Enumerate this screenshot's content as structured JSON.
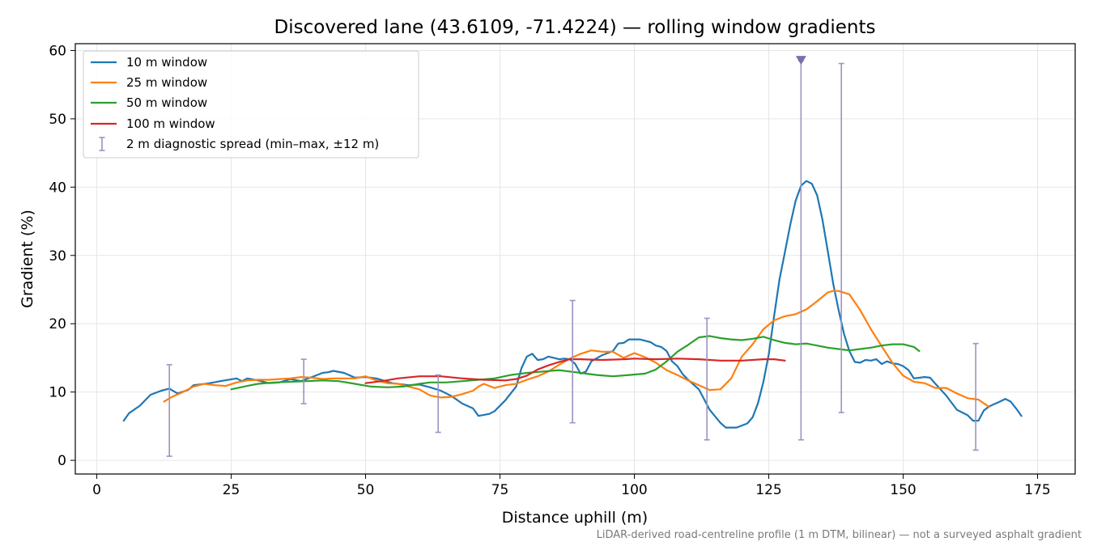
{
  "chart_data": {
    "type": "line",
    "title": "Discovered lane (43.6109, -71.4224) — rolling window gradients",
    "xlabel": "Distance uphill (m)",
    "ylabel": "Gradient (%)",
    "xlim": [
      -4,
      182
    ],
    "ylim": [
      -2,
      61
    ],
    "xticks": [
      0,
      25,
      50,
      75,
      100,
      125,
      150,
      175
    ],
    "yticks": [
      0,
      10,
      20,
      30,
      40,
      50,
      60
    ],
    "grid": true,
    "legend_position": "top-left",
    "footnote": "LiDAR-derived road-centreline profile (1 m DTM, bilinear) — not a surveyed asphalt gradient",
    "series": [
      {
        "name": "10 m window",
        "color": "#1f77b4",
        "points": [
          [
            5,
            5.8
          ],
          [
            6,
            6.9
          ],
          [
            8,
            8.0
          ],
          [
            10,
            9.6
          ],
          [
            12,
            10.2
          ],
          [
            13.5,
            10.5
          ],
          [
            15,
            9.8
          ],
          [
            17,
            10.3
          ],
          [
            18,
            11.0
          ],
          [
            21,
            11.3
          ],
          [
            23,
            11.6
          ],
          [
            26,
            12.0
          ],
          [
            27,
            11.6
          ],
          [
            28,
            12.0
          ],
          [
            30,
            11.7
          ],
          [
            32,
            11.3
          ],
          [
            34,
            11.4
          ],
          [
            36,
            11.9
          ],
          [
            38,
            11.6
          ],
          [
            40,
            12.2
          ],
          [
            42,
            12.8
          ],
          [
            43,
            12.9
          ],
          [
            44,
            13.1
          ],
          [
            46,
            12.8
          ],
          [
            48,
            12.1
          ],
          [
            50,
            12.2
          ],
          [
            52,
            12.0
          ],
          [
            55,
            11.3
          ],
          [
            58,
            11.0
          ],
          [
            60,
            11.1
          ],
          [
            62,
            10.7
          ],
          [
            64,
            10.2
          ],
          [
            66,
            9.4
          ],
          [
            68,
            8.3
          ],
          [
            70,
            7.6
          ],
          [
            71,
            6.5
          ],
          [
            73,
            6.8
          ],
          [
            74,
            7.2
          ],
          [
            76,
            8.8
          ],
          [
            78,
            10.8
          ],
          [
            79,
            13.5
          ],
          [
            80,
            15.2
          ],
          [
            81,
            15.6
          ],
          [
            82,
            14.7
          ],
          [
            83,
            14.8
          ],
          [
            84,
            15.2
          ],
          [
            86,
            14.8
          ],
          [
            87,
            14.9
          ],
          [
            88,
            14.8
          ],
          [
            89,
            14.1
          ],
          [
            90,
            12.7
          ],
          [
            91,
            13.0
          ],
          [
            92,
            14.5
          ],
          [
            94,
            15.4
          ],
          [
            96,
            16.0
          ],
          [
            97,
            17.1
          ],
          [
            98,
            17.2
          ],
          [
            99,
            17.7
          ],
          [
            101,
            17.7
          ],
          [
            103,
            17.3
          ],
          [
            104,
            16.8
          ],
          [
            105,
            16.6
          ],
          [
            106,
            16.0
          ],
          [
            107,
            14.5
          ],
          [
            108,
            13.8
          ],
          [
            109,
            12.6
          ],
          [
            110,
            11.8
          ],
          [
            112,
            10.4
          ],
          [
            114,
            7.4
          ],
          [
            116,
            5.5
          ],
          [
            117,
            4.8
          ],
          [
            119,
            4.8
          ],
          [
            121,
            5.4
          ],
          [
            122,
            6.3
          ],
          [
            123,
            8.4
          ],
          [
            124,
            11.5
          ],
          [
            125,
            15.5
          ],
          [
            126,
            21.2
          ],
          [
            127,
            26.5
          ],
          [
            128,
            30.5
          ],
          [
            129,
            34.5
          ],
          [
            130,
            38.0
          ],
          [
            131,
            40.2
          ],
          [
            132,
            40.9
          ],
          [
            133,
            40.5
          ],
          [
            134,
            38.8
          ],
          [
            135,
            35.2
          ],
          [
            136,
            30.5
          ],
          [
            137,
            25.8
          ],
          [
            138,
            22.0
          ],
          [
            139,
            18.5
          ],
          [
            140,
            16.0
          ],
          [
            141,
            14.4
          ],
          [
            142,
            14.3
          ],
          [
            143,
            14.7
          ],
          [
            144,
            14.6
          ],
          [
            145,
            14.8
          ],
          [
            146,
            14.1
          ],
          [
            147,
            14.5
          ],
          [
            148,
            14.2
          ],
          [
            149,
            14.1
          ],
          [
            150,
            13.8
          ],
          [
            151,
            13.2
          ],
          [
            152,
            12.0
          ],
          [
            154,
            12.2
          ],
          [
            155,
            12.1
          ],
          [
            156,
            11.2
          ],
          [
            158,
            9.5
          ],
          [
            160,
            7.4
          ],
          [
            162,
            6.6
          ],
          [
            163,
            5.8
          ],
          [
            164,
            5.8
          ],
          [
            165,
            7.3
          ],
          [
            166,
            7.9
          ],
          [
            168,
            8.6
          ],
          [
            169,
            9.0
          ],
          [
            170,
            8.6
          ],
          [
            171,
            7.6
          ],
          [
            172,
            6.5
          ]
        ]
      },
      {
        "name": "25 m window",
        "color": "#ff7f0e",
        "points": [
          [
            12.5,
            8.6
          ],
          [
            14,
            9.3
          ],
          [
            16,
            10.0
          ],
          [
            18,
            10.8
          ],
          [
            20,
            11.2
          ],
          [
            22,
            11.0
          ],
          [
            24,
            10.9
          ],
          [
            26,
            11.4
          ],
          [
            28,
            11.7
          ],
          [
            30,
            11.8
          ],
          [
            32,
            11.8
          ],
          [
            34,
            11.9
          ],
          [
            36,
            12.0
          ],
          [
            38,
            12.2
          ],
          [
            40,
            12.1
          ],
          [
            42,
            11.9
          ],
          [
            44,
            12.0
          ],
          [
            46,
            12.0
          ],
          [
            48,
            12.0
          ],
          [
            50,
            12.3
          ],
          [
            52,
            11.7
          ],
          [
            54,
            11.3
          ],
          [
            56,
            11.2
          ],
          [
            58,
            10.8
          ],
          [
            60,
            10.4
          ],
          [
            62,
            9.5
          ],
          [
            64,
            9.2
          ],
          [
            66,
            9.3
          ],
          [
            68,
            9.7
          ],
          [
            70,
            10.2
          ],
          [
            71,
            10.8
          ],
          [
            72,
            11.2
          ],
          [
            74,
            10.6
          ],
          [
            76,
            11.0
          ],
          [
            78,
            11.2
          ],
          [
            80,
            11.8
          ],
          [
            82,
            12.3
          ],
          [
            84,
            13.0
          ],
          [
            86,
            14.0
          ],
          [
            88,
            14.9
          ],
          [
            90,
            15.6
          ],
          [
            92,
            16.1
          ],
          [
            94,
            15.9
          ],
          [
            96,
            15.9
          ],
          [
            98,
            15.0
          ],
          [
            100,
            15.7
          ],
          [
            102,
            15.1
          ],
          [
            104,
            14.3
          ],
          [
            106,
            13.2
          ],
          [
            108,
            12.5
          ],
          [
            110,
            11.7
          ],
          [
            112,
            11.0
          ],
          [
            114,
            10.3
          ],
          [
            116,
            10.4
          ],
          [
            118,
            12.0
          ],
          [
            120,
            15.2
          ],
          [
            122,
            17.0
          ],
          [
            124,
            19.2
          ],
          [
            126,
            20.5
          ],
          [
            128,
            21.1
          ],
          [
            130,
            21.4
          ],
          [
            132,
            22.1
          ],
          [
            134,
            23.3
          ],
          [
            136,
            24.6
          ],
          [
            137,
            24.8
          ],
          [
            138,
            24.8
          ],
          [
            140,
            24.3
          ],
          [
            142,
            22.0
          ],
          [
            144,
            19.2
          ],
          [
            146,
            16.7
          ],
          [
            148,
            14.3
          ],
          [
            150,
            12.4
          ],
          [
            152,
            11.5
          ],
          [
            154,
            11.3
          ],
          [
            156,
            10.6
          ],
          [
            158,
            10.6
          ],
          [
            160,
            9.8
          ],
          [
            162,
            9.1
          ],
          [
            164,
            8.9
          ],
          [
            166,
            7.8
          ]
        ]
      },
      {
        "name": "50 m window",
        "color": "#2ca02c",
        "points": [
          [
            25,
            10.4
          ],
          [
            28,
            10.9
          ],
          [
            30,
            11.2
          ],
          [
            33,
            11.4
          ],
          [
            36,
            11.5
          ],
          [
            39,
            11.6
          ],
          [
            42,
            11.7
          ],
          [
            45,
            11.6
          ],
          [
            48,
            11.2
          ],
          [
            51,
            10.8
          ],
          [
            54,
            10.7
          ],
          [
            57,
            10.8
          ],
          [
            60,
            11.2
          ],
          [
            62,
            11.4
          ],
          [
            65,
            11.4
          ],
          [
            68,
            11.6
          ],
          [
            71,
            11.8
          ],
          [
            74,
            12.0
          ],
          [
            77,
            12.5
          ],
          [
            80,
            12.8
          ],
          [
            83,
            13.0
          ],
          [
            86,
            13.2
          ],
          [
            88,
            13.0
          ],
          [
            90,
            12.8
          ],
          [
            93,
            12.5
          ],
          [
            96,
            12.3
          ],
          [
            99,
            12.5
          ],
          [
            102,
            12.7
          ],
          [
            104,
            13.3
          ],
          [
            106,
            14.5
          ],
          [
            108,
            15.9
          ],
          [
            110,
            16.9
          ],
          [
            112,
            18.0
          ],
          [
            114,
            18.2
          ],
          [
            116,
            17.9
          ],
          [
            118,
            17.7
          ],
          [
            120,
            17.6
          ],
          [
            122,
            17.8
          ],
          [
            124,
            18.1
          ],
          [
            126,
            17.6
          ],
          [
            128,
            17.2
          ],
          [
            130,
            17.0
          ],
          [
            132,
            17.1
          ],
          [
            134,
            16.8
          ],
          [
            136,
            16.5
          ],
          [
            138,
            16.3
          ],
          [
            140,
            16.1
          ],
          [
            142,
            16.3
          ],
          [
            144,
            16.5
          ],
          [
            146,
            16.8
          ],
          [
            148,
            17.0
          ],
          [
            150,
            17.0
          ],
          [
            152,
            16.6
          ],
          [
            153,
            16.0
          ]
        ]
      },
      {
        "name": "100 m window",
        "color": "#d62728",
        "points": [
          [
            50,
            11.3
          ],
          [
            53,
            11.6
          ],
          [
            56,
            12.0
          ],
          [
            60,
            12.3
          ],
          [
            64,
            12.3
          ],
          [
            68,
            12.0
          ],
          [
            72,
            11.8
          ],
          [
            76,
            11.7
          ],
          [
            78,
            11.9
          ],
          [
            80,
            12.4
          ],
          [
            82,
            13.3
          ],
          [
            84,
            13.9
          ],
          [
            86,
            14.4
          ],
          [
            88,
            14.8
          ],
          [
            90,
            14.8
          ],
          [
            94,
            14.7
          ],
          [
            98,
            14.8
          ],
          [
            100,
            14.9
          ],
          [
            104,
            14.8
          ],
          [
            108,
            14.9
          ],
          [
            112,
            14.8
          ],
          [
            116,
            14.6
          ],
          [
            120,
            14.6
          ],
          [
            124,
            14.8
          ],
          [
            126,
            14.8
          ],
          [
            128,
            14.6
          ]
        ]
      }
    ],
    "spread": {
      "name": "2 m diagnostic spread (min–max, ±12 m)",
      "color": "#9a95c2",
      "bars": [
        [
          13.5,
          0.6,
          14.0
        ],
        [
          38.5,
          8.3,
          14.8
        ],
        [
          63.5,
          4.1,
          12.5
        ],
        [
          88.5,
          5.5,
          23.4
        ],
        [
          113.5,
          3.0,
          20.8
        ],
        [
          131,
          3.0,
          58.5
        ],
        [
          138.5,
          7.0,
          58.1
        ],
        [
          163.5,
          1.5,
          17.1
        ]
      ],
      "marker": {
        "x": 131,
        "y": 58.5
      }
    }
  }
}
